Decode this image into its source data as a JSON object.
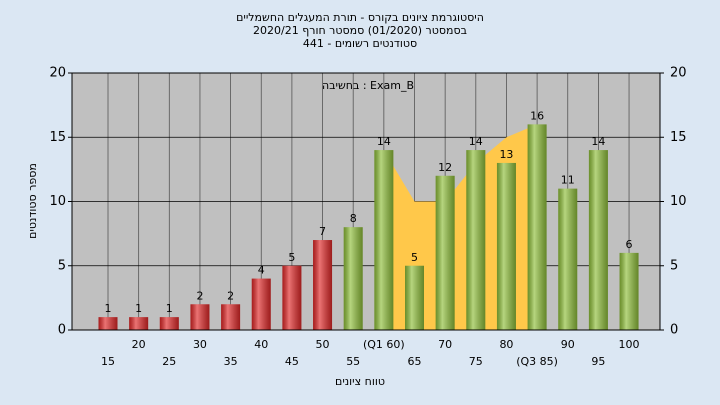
{
  "chart_data": {
    "type": "bar",
    "title": [
      "היסטוגרמת ציונים בקורס - תורת המעגלים החשמליים",
      "בסמסטר  (01/2020)  סמסטר חורף 2020/21",
      "סטודנטים רשומים - 441"
    ],
    "annotation": "בחשיבה : Exam_B",
    "categories": [
      "15",
      "20",
      "25",
      "30",
      "35",
      "40",
      "45",
      "50",
      "55",
      "(Q1 60)",
      "65",
      "70",
      "75",
      "80",
      "(Q3 85)",
      "90",
      "95",
      "100"
    ],
    "values": [
      1,
      1,
      1,
      2,
      2,
      4,
      5,
      7,
      8,
      14,
      5,
      12,
      14,
      13,
      16,
      11,
      14,
      6
    ],
    "colors": [
      "#e02828",
      "#e02828",
      "#e02828",
      "#e02828",
      "#e02828",
      "#e02828",
      "#e02828",
      "#e02828",
      "#8fbf3a",
      "#8fbf3a",
      "#8fbf3a",
      "#8fbf3a",
      "#8fbf3a",
      "#8fbf3a",
      "#8fbf3a",
      "#8fbf3a",
      "#8fbf3a",
      "#8fbf3a"
    ],
    "area": {
      "color": "#ffc84a",
      "values": [
        null,
        null,
        null,
        null,
        null,
        null,
        null,
        null,
        null,
        14,
        10,
        10,
        13,
        15,
        16,
        null,
        null,
        null
      ]
    },
    "ylim": [
      0,
      20
    ],
    "yticks": [
      0,
      5,
      10,
      15,
      20
    ],
    "y2lim": [
      0,
      20
    ],
    "y2ticks": [
      0,
      5,
      10,
      15,
      20
    ],
    "ylabel": "מספר סטודנטים",
    "xlabel": "טווח ציונים",
    "grid": true
  }
}
